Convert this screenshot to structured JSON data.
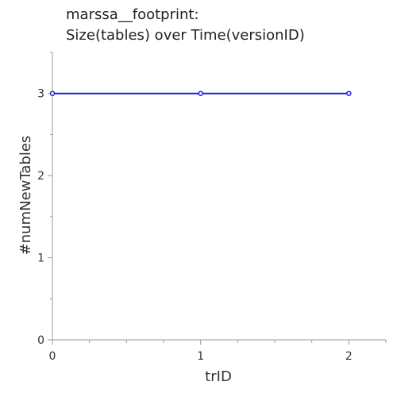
{
  "chart_data": {
    "type": "line",
    "title": [
      "marssa__footprint:",
      "Size(tables) over Time(versionID)"
    ],
    "xlabel": "trID",
    "ylabel": "#numNewTables",
    "x": [
      0,
      1,
      2
    ],
    "series": [
      {
        "values": [
          3,
          3,
          3
        ]
      }
    ],
    "xlim": [
      0,
      2.25
    ],
    "ylim": [
      0,
      3.5
    ],
    "x_ticks": [
      0,
      1,
      2
    ],
    "x_tick_labels": [
      "0",
      "1",
      "2"
    ],
    "y_ticks": [
      0,
      1,
      2,
      3
    ],
    "y_tick_labels": [
      "0",
      "1",
      "2",
      "3"
    ],
    "grid": false,
    "colors": {
      "line": "#1f1fd1",
      "axis": "#999999",
      "text": "#333333"
    }
  }
}
